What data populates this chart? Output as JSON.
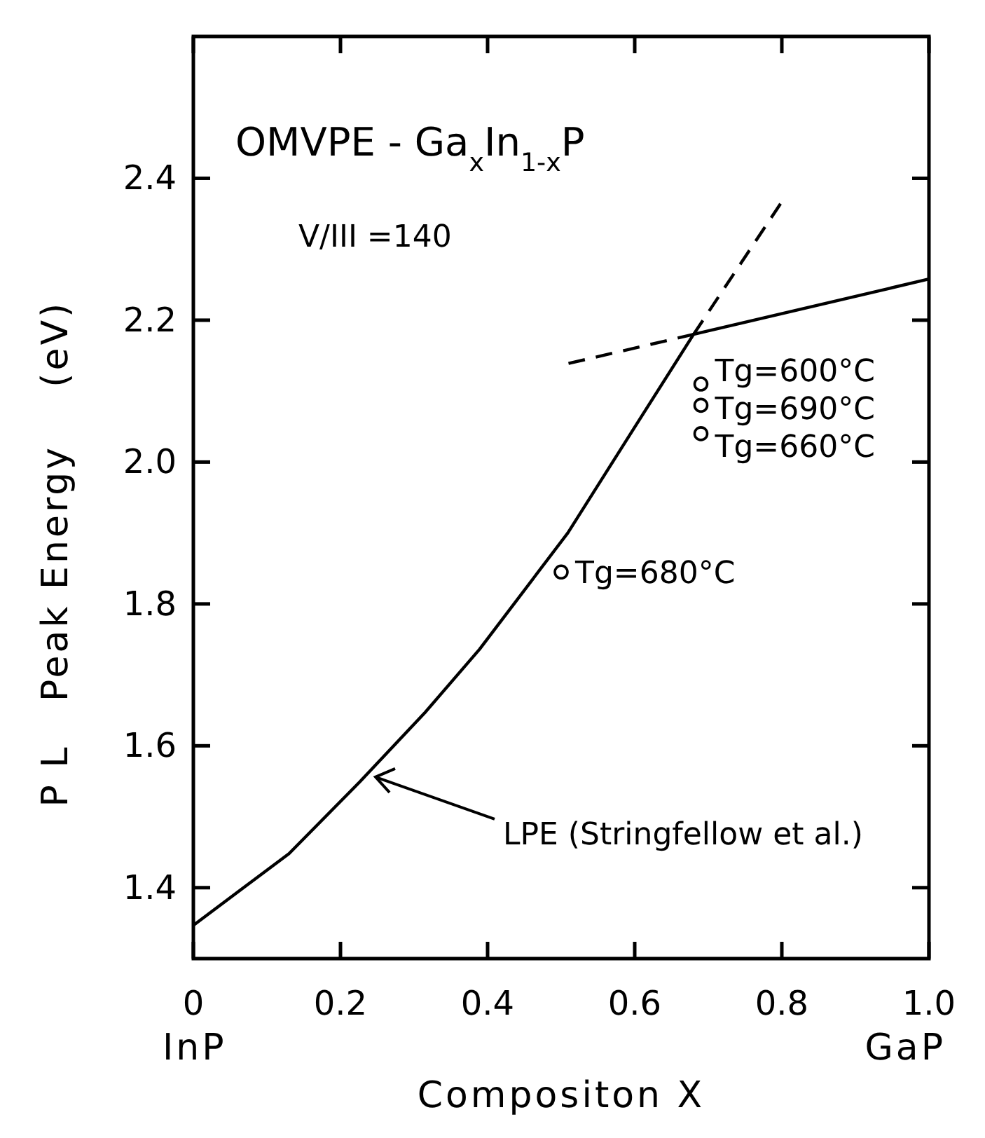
{
  "chart_data": {
    "type": "line",
    "title": "OMVPE - Ga$_{x}$In$_{1-x}$P",
    "xlabel": "Compositon  X",
    "ylabel": "P L   Peak Energy    (eV)",
    "xlim": [
      0,
      1
    ],
    "ylim": [
      1.3,
      2.6
    ],
    "xticks": [
      0,
      0.2,
      0.4,
      0.6,
      0.8,
      {
        "value": 1,
        "label": "1.0"
      }
    ],
    "yticks": [
      1.4,
      1.6,
      1.8,
      {
        "value": 2,
        "label": "2.0"
      },
      2.2,
      2.4
    ],
    "grid": false,
    "series": [
      {
        "color": "#000000",
        "line_style": "solid",
        "marker": "none",
        "x": [
          0,
          0.13,
          0.226,
          0.315,
          0.389,
          0.509,
          0.598,
          0.68,
          1.0
        ],
        "values": [
          1.347,
          1.448,
          1.549,
          1.647,
          1.736,
          1.9,
          2.046,
          2.18,
          2.258
        ]
      },
      {
        "type": "line",
        "color": "#000000",
        "line_style": "dashed",
        "marker": "none",
        "x": [
          0.68,
          0.8
        ],
        "values": [
          2.18,
          2.367
        ]
      },
      {
        "type": "line",
        "color": "#000000",
        "line_style": "dashed",
        "marker": "none",
        "x": [
          0.51,
          0.68
        ],
        "values": [
          2.139,
          2.18
        ]
      },
      {
        "type": "scatter",
        "color": "#000000",
        "marker": "circle",
        "x": [
          0.69,
          0.69,
          0.69,
          0.5
        ],
        "values": [
          2.11,
          2.08,
          2.04,
          1.845
        ]
      }
    ],
    "annotations": [
      "V/III =140",
      {
        "text": "Tg=600°C",
        "x": 0.69,
        "y": 2.11
      },
      {
        "text": "Tg=690°C",
        "x": 0.69,
        "y": 2.08
      },
      {
        "text": "Tg=660°C",
        "x": 0.69,
        "y": 2.04
      },
      {
        "text": "Tg=680°C",
        "x": 0.5,
        "y": 1.845
      },
      {
        "text": "LPE (Stringfellow et al.)",
        "x": 0.24,
        "y": 1.56
      },
      "InP",
      "GaP"
    ]
  }
}
